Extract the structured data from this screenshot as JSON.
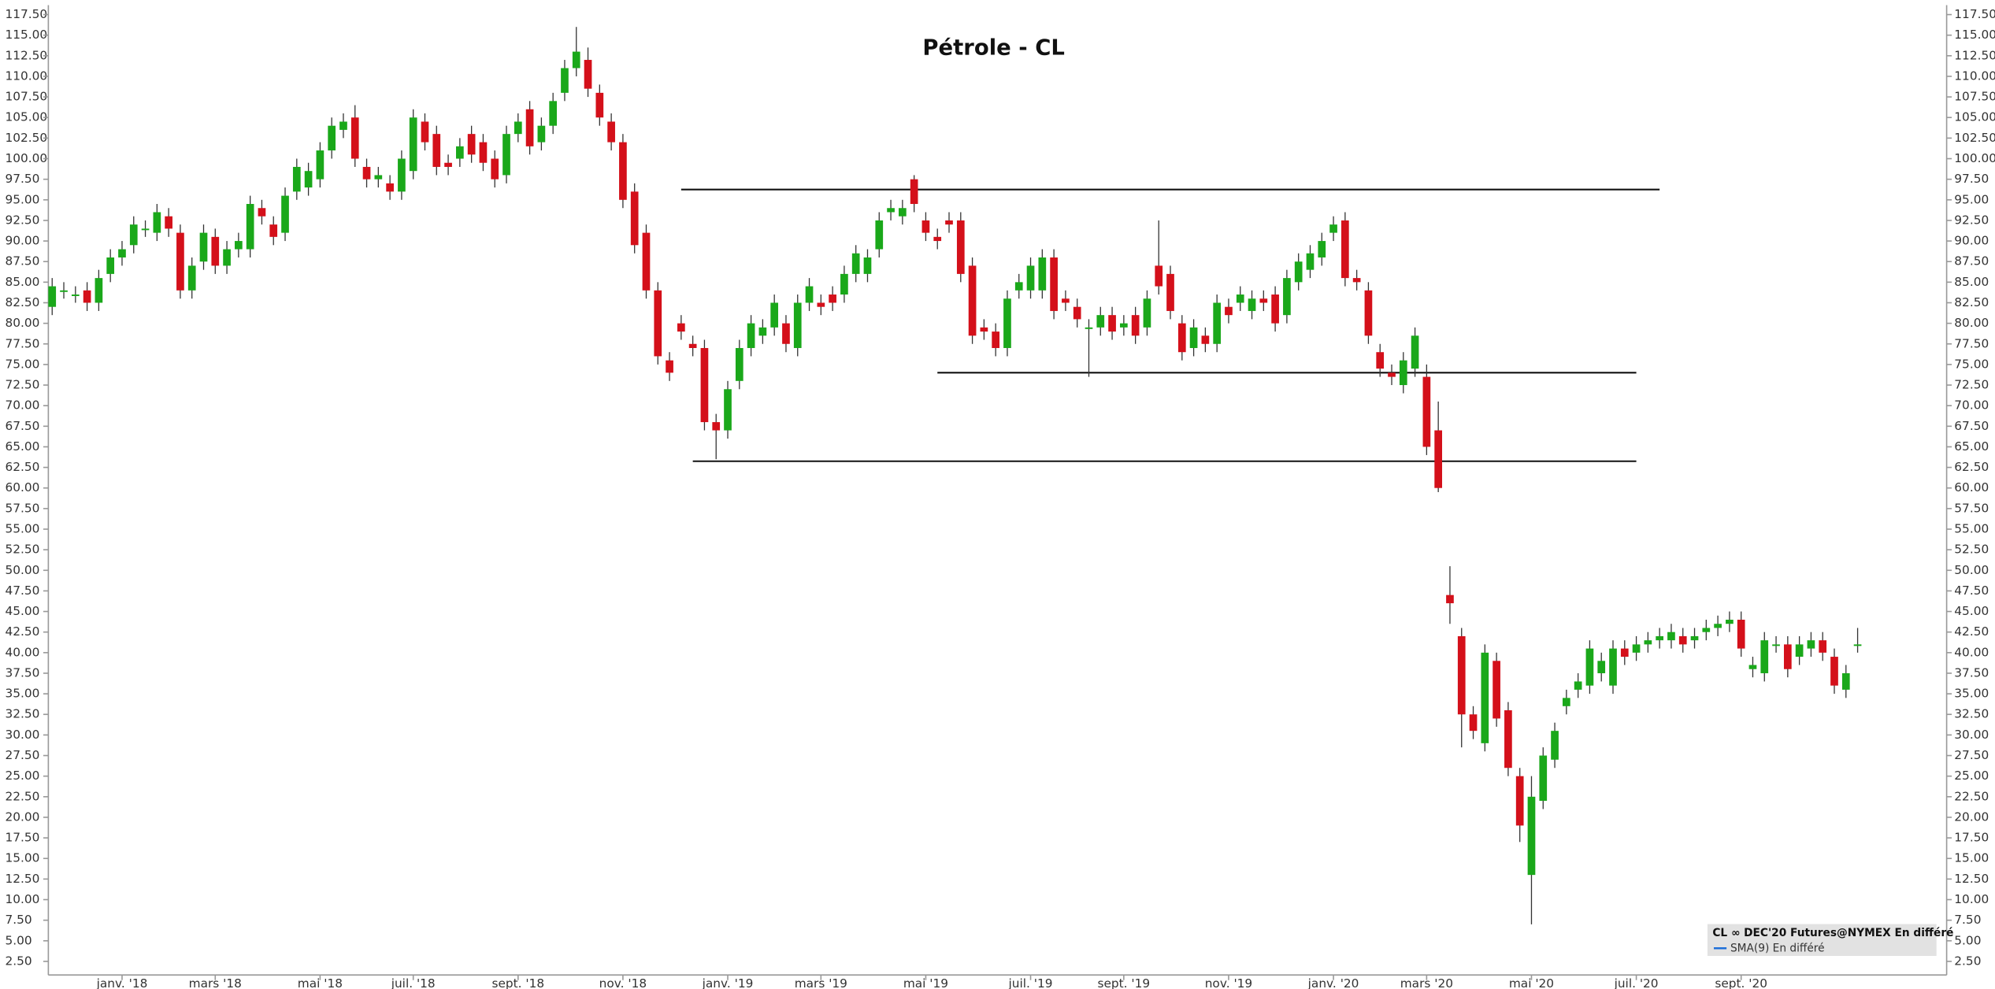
{
  "chart_data": {
    "type": "candlestick",
    "title": "Pétrole - CL",
    "categories": [
      null,
      null,
      null,
      null,
      null,
      null,
      "janv. '18",
      null,
      null,
      null,
      null,
      null,
      null,
      null,
      "mars '18",
      null,
      null,
      null,
      null,
      null,
      null,
      null,
      null,
      "mai '18",
      null,
      null,
      null,
      null,
      null,
      null,
      null,
      "juil. '18",
      null,
      null,
      null,
      null,
      null,
      null,
      null,
      null,
      "sept. '18",
      null,
      null,
      null,
      null,
      null,
      null,
      null,
      null,
      "nov. '18",
      null,
      null,
      null,
      null,
      null,
      null,
      null,
      null,
      "janv. '19",
      null,
      null,
      null,
      null,
      null,
      null,
      null,
      "mars '19",
      null,
      null,
      null,
      null,
      null,
      null,
      null,
      null,
      "mai '19",
      null,
      null,
      null,
      null,
      null,
      null,
      null,
      null,
      "juil. '19",
      null,
      null,
      null,
      null,
      null,
      null,
      null,
      "sept. '19",
      null,
      null,
      null,
      null,
      null,
      null,
      null,
      null,
      "nov. '19",
      null,
      null,
      null,
      null,
      null,
      null,
      null,
      null,
      "janv. '20",
      null,
      null,
      null,
      null,
      null,
      null,
      null,
      "mars '20",
      null,
      null,
      null,
      null,
      null,
      null,
      null,
      null,
      "mai '20",
      null,
      null,
      null,
      null,
      null,
      null,
      null,
      null,
      "juil. '20",
      null,
      null,
      null,
      null,
      null,
      null,
      null,
      null,
      "sept. '20",
      null,
      null,
      null,
      null,
      null,
      null,
      null,
      null,
      null,
      null
    ],
    "open": [
      82,
      84,
      83.5,
      84,
      82.5,
      86,
      88,
      89.5,
      91.5,
      91,
      93,
      91,
      84,
      87.5,
      90.5,
      87,
      89,
      89,
      94,
      92,
      91,
      96,
      96.5,
      97.5,
      101,
      103.5,
      105,
      99,
      97.5,
      97,
      96,
      98.5,
      104.5,
      103,
      99.5,
      100,
      103,
      102,
      100,
      98,
      103,
      106,
      102,
      104,
      108,
      111,
      112,
      108,
      104.5,
      102,
      96,
      91,
      84,
      75.5,
      80,
      77.5,
      77,
      68,
      67,
      73,
      77,
      78.5,
      79.5,
      80,
      77,
      82.5,
      82.5,
      83.5,
      83.5,
      86,
      86,
      89,
      93.5,
      93,
      97.5,
      92.5,
      90.5,
      92.5,
      92.5,
      87,
      79.5,
      79,
      77,
      84,
      84,
      84,
      88,
      83,
      82,
      79.5,
      79.5,
      81,
      79.5,
      81,
      79.5,
      87,
      86,
      80,
      77,
      78.5,
      77.5,
      82,
      82.5,
      81.5,
      83,
      83.5,
      81,
      85,
      86.5,
      88,
      91,
      92.5,
      85.5,
      84,
      76.5,
      74,
      72.5,
      74.5,
      73.5,
      67,
      47,
      42,
      32.5,
      29,
      39,
      33,
      25,
      13,
      22,
      27,
      33.5,
      35.5,
      36,
      37.5,
      36,
      40.5,
      40,
      41,
      41.5,
      41.5,
      42,
      41.5,
      42.5,
      43,
      43.5,
      44,
      38,
      37.5,
      41,
      41,
      39.5,
      40.5,
      41.5,
      39.5,
      35.5,
      41
    ],
    "high": [
      85.5,
      85,
      84.5,
      85,
      86.5,
      89,
      90,
      93,
      92.5,
      94.5,
      94,
      92,
      88,
      92,
      91.5,
      90,
      91,
      95.5,
      95,
      93,
      96.5,
      100,
      99.5,
      102,
      105,
      105.5,
      106.5,
      100,
      99,
      98,
      101,
      106,
      105.5,
      104,
      100.5,
      102.5,
      104,
      103,
      101,
      104,
      105.5,
      107,
      105,
      108,
      112,
      116,
      113.5,
      109,
      105.5,
      103,
      97,
      92,
      85,
      76.5,
      81,
      78.5,
      78,
      69,
      73,
      78,
      81,
      80.5,
      83.5,
      81,
      83.5,
      85.5,
      83.5,
      84.5,
      87,
      89.5,
      89,
      93.5,
      95,
      95,
      98,
      93.5,
      91.5,
      93.5,
      93.5,
      88,
      80.5,
      80,
      84,
      86,
      88,
      89,
      89,
      84,
      83,
      80.5,
      82,
      82,
      81,
      82,
      84,
      92.5,
      87,
      81,
      80.5,
      79.5,
      83.5,
      83,
      84.5,
      84,
      84,
      84.5,
      86.5,
      88.5,
      89.5,
      91,
      93,
      93.5,
      86.5,
      85,
      77.5,
      75,
      76.5,
      79.5,
      75,
      70.5,
      50.5,
      43,
      33.5,
      41,
      40,
      34,
      26,
      25,
      28.5,
      31.5,
      35.5,
      37.5,
      41.5,
      40,
      41.5,
      41.5,
      42,
      42.5,
      43,
      43.5,
      43,
      43,
      44,
      44.5,
      45,
      45,
      39.5,
      42.5,
      42,
      42,
      42,
      42.5,
      42.5,
      40.5,
      38.5,
      43
    ],
    "low": [
      81,
      83,
      82.5,
      81.5,
      81.5,
      85,
      87,
      88.5,
      90.5,
      90,
      90.5,
      83,
      83,
      86.5,
      86,
      86,
      88,
      88,
      92,
      89.5,
      90,
      95,
      95.5,
      96.5,
      100,
      102.5,
      99,
      96.5,
      96.5,
      95,
      95,
      97.5,
      101,
      98,
      98,
      99,
      99.5,
      98.5,
      96.5,
      97,
      102,
      100.5,
      101,
      103,
      107,
      110,
      107.5,
      104,
      101,
      94,
      88.5,
      83,
      75,
      73,
      78,
      76,
      67,
      63.5,
      66,
      72,
      76,
      77.5,
      78.5,
      76.5,
      76,
      81.5,
      81,
      81.5,
      82.5,
      85,
      85,
      88,
      92.5,
      92,
      93.5,
      90,
      89,
      91,
      85,
      77.5,
      78,
      76,
      76,
      83,
      83,
      83,
      80.5,
      81.5,
      79.5,
      73.5,
      78.5,
      78,
      78.5,
      77.5,
      78.5,
      83.5,
      80.5,
      75.5,
      76,
      76.5,
      76.5,
      80,
      81.5,
      80.5,
      81.5,
      79,
      80,
      84,
      85.5,
      87,
      90,
      84.5,
      84,
      77.5,
      73.5,
      72.5,
      71.5,
      73.5,
      64,
      59.5,
      43.5,
      28.5,
      29.5,
      28,
      31,
      25,
      17,
      7,
      21,
      26,
      32.5,
      34.5,
      35,
      36.5,
      35,
      38.5,
      39,
      40,
      40.5,
      40.5,
      40,
      40.5,
      41.5,
      42,
      42.5,
      39.5,
      37,
      36.5,
      40,
      37,
      38.5,
      39.5,
      39,
      35,
      34.5,
      40
    ],
    "close": [
      84.5,
      84,
      83.5,
      82.5,
      85.5,
      88,
      89,
      92,
      91.5,
      93.5,
      91.5,
      84,
      87,
      91,
      87,
      89,
      90,
      94.5,
      93,
      90.5,
      95.5,
      99,
      98.5,
      101,
      104,
      104.5,
      100,
      97.5,
      98,
      96,
      100,
      105,
      102,
      99,
      99,
      101.5,
      100.5,
      99.5,
      97.5,
      103,
      104.5,
      101.5,
      104,
      107,
      111,
      113,
      108.5,
      105,
      102,
      95,
      89.5,
      84,
      76,
      74,
      79,
      77,
      68,
      67,
      72,
      77,
      80,
      79.5,
      82.5,
      77.5,
      82.5,
      84.5,
      82,
      82.5,
      86,
      88.5,
      88,
      92.5,
      94,
      94,
      94.5,
      91,
      90,
      92,
      86,
      78.5,
      79,
      77,
      83,
      85,
      87,
      88,
      81.5,
      82.5,
      80.5,
      79.5,
      81,
      79,
      80,
      78.5,
      83,
      84.5,
      81.5,
      76.5,
      79.5,
      77.5,
      82.5,
      81,
      83.5,
      83,
      82.5,
      80,
      85.5,
      87.5,
      88.5,
      90,
      92,
      85.5,
      85,
      78.5,
      74.5,
      73.5,
      75.5,
      78.5,
      65,
      60,
      46,
      32.5,
      30.5,
      40,
      32,
      26,
      19,
      22.5,
      27.5,
      30.5,
      34.5,
      36.5,
      40.5,
      39,
      40.5,
      39.5,
      41,
      41.5,
      42,
      42.5,
      41,
      42,
      43,
      43.5,
      44,
      40.5,
      38.5,
      41.5,
      41,
      38,
      41,
      41.5,
      40,
      36,
      37.5,
      41
    ],
    "up_color": "#1aa81a",
    "down_color": "#d4101a",
    "levels": [
      {
        "value": 96.25,
        "start": 54,
        "end": 138
      },
      {
        "value": 74,
        "start": 76,
        "end": 136
      },
      {
        "value": 63.25,
        "start": 55,
        "end": 136
      }
    ],
    "ylim": [
      1,
      118.5
    ],
    "yticks": [
      {
        "value": 2.5,
        "label": "2.50"
      },
      {
        "value": 5,
        "label": "5.00"
      },
      {
        "value": 7.5,
        "label": "7.50"
      },
      {
        "value": 10,
        "label": "10.00"
      },
      {
        "value": 12.5,
        "label": "12.50"
      },
      {
        "value": 15,
        "label": "15.00"
      },
      {
        "value": 17.5,
        "label": "17.50"
      },
      {
        "value": 20,
        "label": "20.00"
      },
      {
        "value": 22.5,
        "label": "22.50"
      },
      {
        "value": 25,
        "label": "25.00"
      },
      {
        "value": 27.5,
        "label": "27.50"
      },
      {
        "value": 30,
        "label": "30.00"
      },
      {
        "value": 32.5,
        "label": "32.50"
      },
      {
        "value": 35,
        "label": "35.00"
      },
      {
        "value": 37.5,
        "label": "37.50"
      },
      {
        "value": 40,
        "label": "40.00"
      },
      {
        "value": 42.5,
        "label": "42.50"
      },
      {
        "value": 45,
        "label": "45.00"
      },
      {
        "value": 47.5,
        "label": "47.50"
      },
      {
        "value": 50,
        "label": "50.00"
      },
      {
        "value": 52.5,
        "label": "52.50"
      },
      {
        "value": 55,
        "label": "55.00"
      },
      {
        "value": 57.5,
        "label": "57.50"
      },
      {
        "value": 60,
        "label": "60.00"
      },
      {
        "value": 62.5,
        "label": "62.50"
      },
      {
        "value": 65,
        "label": "65.00"
      },
      {
        "value": 67.5,
        "label": "67.50"
      },
      {
        "value": 70,
        "label": "70.00"
      },
      {
        "value": 72.5,
        "label": "72.50"
      },
      {
        "value": 75,
        "label": "75.00"
      },
      {
        "value": 77.5,
        "label": "77.50"
      },
      {
        "value": 80,
        "label": "80.00"
      },
      {
        "value": 82.5,
        "label": "82.50"
      },
      {
        "value": 85,
        "label": "85.00"
      },
      {
        "value": 87.5,
        "label": "87.50"
      },
      {
        "value": 90,
        "label": "90.00"
      },
      {
        "value": 92.5,
        "label": "92.50"
      },
      {
        "value": 95,
        "label": "95.00"
      },
      {
        "value": 97.5,
        "label": "97.50"
      },
      {
        "value": 100,
        "label": "100.00"
      },
      {
        "value": 102.5,
        "label": "102.50"
      },
      {
        "value": 105,
        "label": "105.00"
      },
      {
        "value": 107.5,
        "label": "107.50"
      },
      {
        "value": 110,
        "label": "110.00"
      },
      {
        "value": 112.5,
        "label": "112.50"
      },
      {
        "value": 115,
        "label": "115.00"
      },
      {
        "value": 117.5,
        "label": "117.50"
      }
    ],
    "legend": [
      "CL ∞ DEC'20 Futures@NYMEX En différé",
      "SMA(9) En différé"
    ]
  }
}
